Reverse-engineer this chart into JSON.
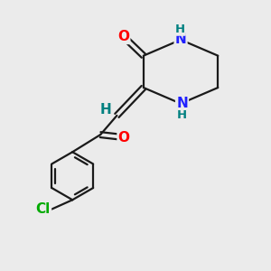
{
  "bg_color": "#ebebeb",
  "bond_color": "#1a1a1a",
  "bond_width": 1.6,
  "atom_colors": {
    "O": "#ff0000",
    "N": "#2020ff",
    "H": "#008080",
    "Cl": "#00aa00"
  },
  "font_size": 11,
  "font_size_h": 9.5
}
